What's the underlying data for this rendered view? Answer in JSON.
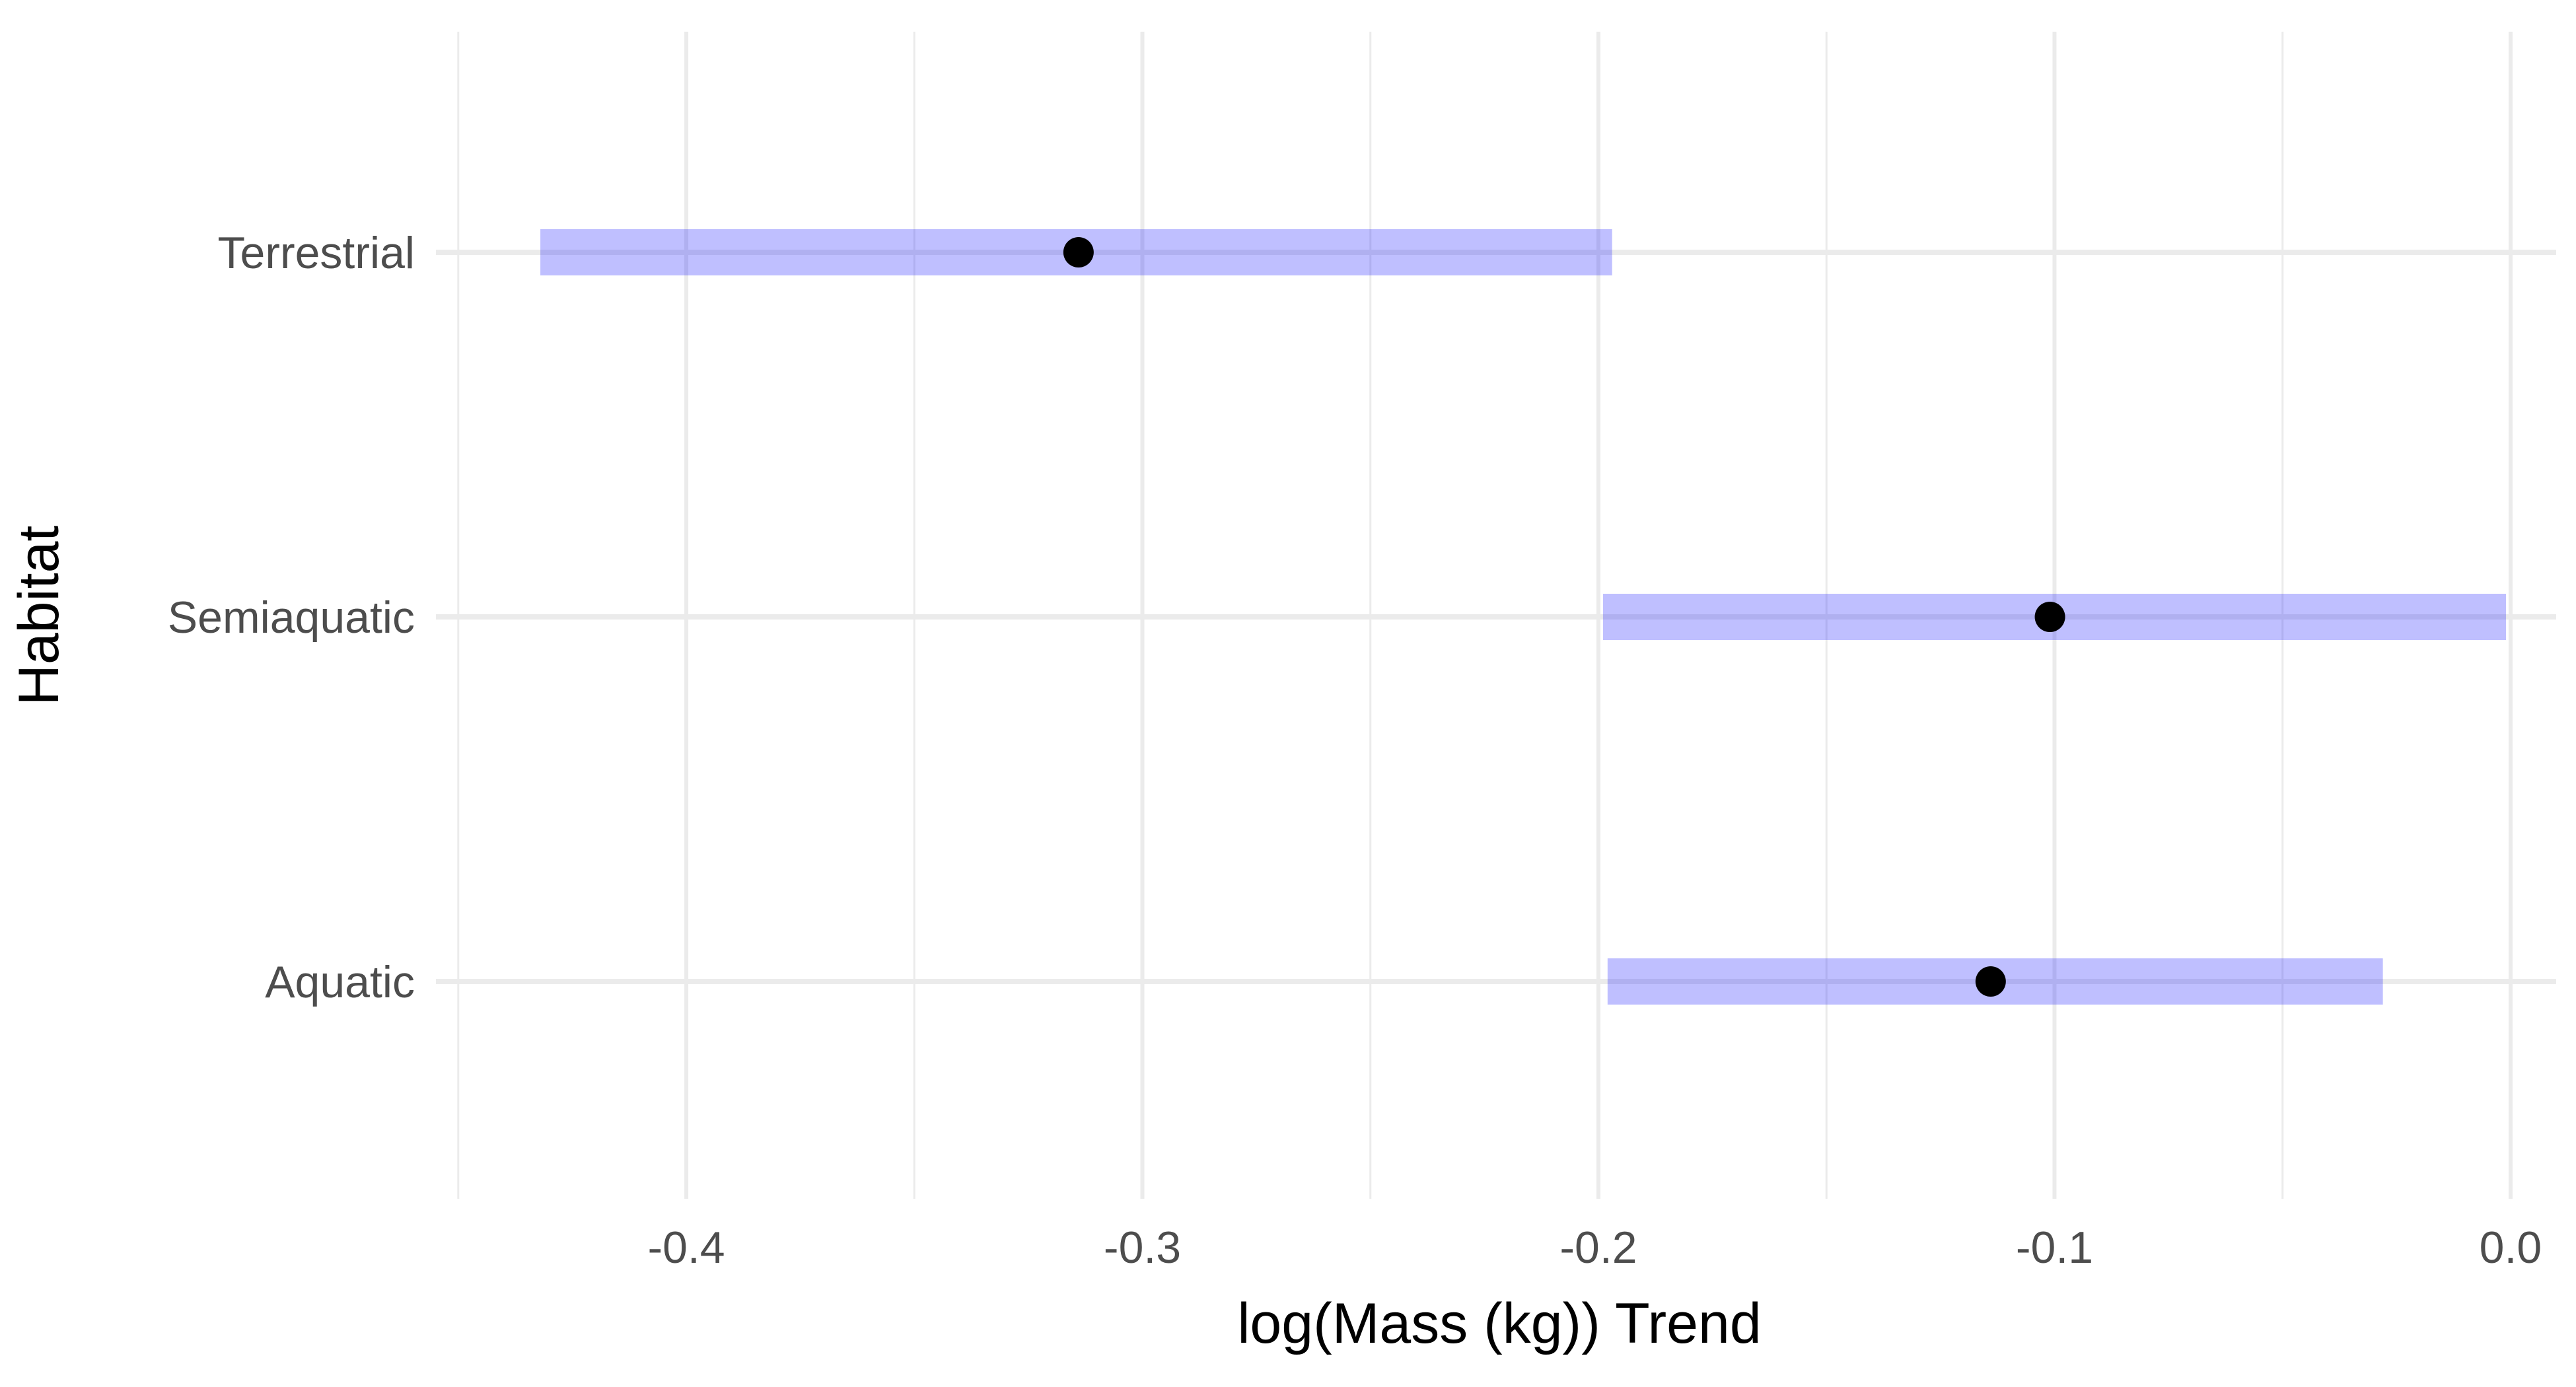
{
  "chart_data": {
    "type": "interval",
    "xlabel": "log(Mass (kg)) Trend",
    "ylabel": "Habitat",
    "xlim": [
      -0.452,
      0.01
    ],
    "x_ticks": [
      -0.4,
      -0.3,
      -0.2,
      -0.1,
      0.0
    ],
    "x_tick_labels": [
      "-0.4",
      "-0.3",
      "-0.2",
      "-0.1",
      "0.0"
    ],
    "x_minor_ticks": [
      -0.45,
      -0.35,
      -0.25,
      -0.15,
      -0.05
    ],
    "categories": [
      "Terrestrial",
      "Semiaquatic",
      "Aquatic"
    ],
    "estimates": [
      -0.314,
      -0.101,
      -0.114
    ],
    "lower": [
      -0.432,
      -0.199,
      -0.198
    ],
    "upper": [
      -0.197,
      -0.001,
      -0.028
    ],
    "grid": true,
    "legend": "none",
    "colors": {
      "interval": "#0000ff",
      "point": "#000000",
      "grid": "#ebebeb"
    }
  }
}
